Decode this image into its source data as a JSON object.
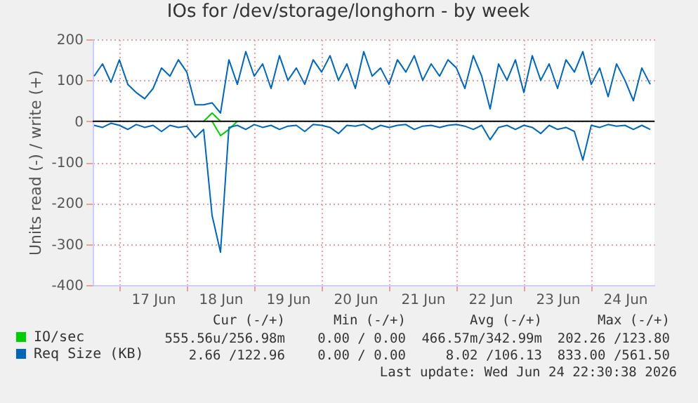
{
  "chart_data": {
    "type": "line",
    "title": "IOs for /dev/storage/longhorn - by week",
    "ylabel": "Units read (-) / write (+)",
    "x": [
      "2026-06-16T15:00",
      "2026-06-16T18:00",
      "2026-06-16T21:00",
      "2026-06-17T00:00",
      "2026-06-17T03:00",
      "2026-06-17T06:00",
      "2026-06-17T09:00",
      "2026-06-17T12:00",
      "2026-06-17T15:00",
      "2026-06-17T18:00",
      "2026-06-17T21:00",
      "2026-06-18T00:00",
      "2026-06-18T03:00",
      "2026-06-18T06:00",
      "2026-06-18T09:00",
      "2026-06-18T12:00",
      "2026-06-18T15:00",
      "2026-06-18T18:00",
      "2026-06-18T21:00",
      "2026-06-19T00:00",
      "2026-06-19T03:00",
      "2026-06-19T06:00",
      "2026-06-19T09:00",
      "2026-06-19T12:00",
      "2026-06-19T15:00",
      "2026-06-19T18:00",
      "2026-06-19T21:00",
      "2026-06-20T00:00",
      "2026-06-20T03:00",
      "2026-06-20T06:00",
      "2026-06-20T09:00",
      "2026-06-20T12:00",
      "2026-06-20T15:00",
      "2026-06-20T18:00",
      "2026-06-20T21:00",
      "2026-06-21T00:00",
      "2026-06-21T03:00",
      "2026-06-21T06:00",
      "2026-06-21T09:00",
      "2026-06-21T12:00",
      "2026-06-21T15:00",
      "2026-06-21T18:00",
      "2026-06-21T21:00",
      "2026-06-22T00:00",
      "2026-06-22T03:00",
      "2026-06-22T06:00",
      "2026-06-22T09:00",
      "2026-06-22T12:00",
      "2026-06-22T15:00",
      "2026-06-22T18:00",
      "2026-06-22T21:00",
      "2026-06-23T00:00",
      "2026-06-23T03:00",
      "2026-06-23T06:00",
      "2026-06-23T09:00",
      "2026-06-23T12:00",
      "2026-06-23T15:00",
      "2026-06-23T18:00",
      "2026-06-23T21:00",
      "2026-06-24T00:00",
      "2026-06-24T03:00",
      "2026-06-24T06:00",
      "2026-06-24T09:00",
      "2026-06-24T12:00",
      "2026-06-24T15:00",
      "2026-06-24T18:00",
      "2026-06-24T21:00"
    ],
    "series": [
      {
        "name": "IO/sec",
        "color": "#00cc00",
        "values": [
          null,
          null,
          null,
          null,
          null,
          null,
          null,
          null,
          null,
          null,
          null,
          null,
          null,
          0,
          20,
          0,
          null,
          null,
          null,
          null,
          null,
          null,
          null,
          null,
          null,
          null,
          null,
          null,
          null,
          null,
          null,
          null,
          null,
          null,
          null,
          null,
          null,
          null,
          null,
          null,
          null,
          null,
          null,
          null,
          null,
          null,
          null,
          null,
          null,
          null,
          null,
          null,
          null,
          null,
          null,
          null,
          null,
          null,
          null,
          null,
          null,
          null,
          null,
          null,
          null,
          null,
          null
        ]
      },
      {
        "color": "#00cc00",
        "values": [
          null,
          null,
          null,
          null,
          null,
          null,
          null,
          null,
          null,
          null,
          null,
          null,
          null,
          null,
          0,
          -35,
          -20,
          0,
          null,
          null,
          null,
          null,
          null,
          null,
          null,
          null,
          null,
          null,
          null,
          null,
          null,
          null,
          null,
          null,
          null,
          null,
          null,
          null,
          null,
          null,
          null,
          null,
          null,
          null,
          null,
          null,
          null,
          null,
          null,
          null,
          null,
          null,
          null,
          null,
          null,
          null,
          null,
          null,
          null,
          null,
          null,
          null,
          null,
          null,
          null,
          null,
          null
        ]
      },
      {
        "name": "Req Size (KB)",
        "color": "#0066b3",
        "values": [
          110,
          140,
          95,
          150,
          90,
          70,
          55,
          80,
          130,
          110,
          150,
          120,
          40,
          40,
          45,
          20,
          150,
          90,
          170,
          110,
          140,
          80,
          160,
          100,
          130,
          90,
          150,
          120,
          160,
          100,
          140,
          80,
          170,
          110,
          130,
          90,
          150,
          120,
          160,
          100,
          140,
          110,
          150,
          130,
          80,
          160,
          110,
          30,
          140,
          100,
          150,
          70,
          160,
          100,
          140,
          80,
          150,
          120,
          170,
          90,
          130,
          60,
          140,
          100,
          50,
          130,
          90
        ]
      },
      {
        "color": "#0066b3",
        "values": [
          -10,
          -15,
          -5,
          -10,
          -20,
          -8,
          -15,
          -10,
          -25,
          -10,
          -15,
          -12,
          -40,
          -20,
          -230,
          -320,
          -15,
          -10,
          -20,
          -8,
          -15,
          -10,
          -20,
          -12,
          -10,
          -25,
          -8,
          -10,
          -15,
          -30,
          -10,
          -12,
          -8,
          -20,
          -10,
          -15,
          -10,
          -8,
          -20,
          -12,
          -10,
          -15,
          -10,
          -8,
          -12,
          -20,
          -10,
          -45,
          -15,
          -10,
          -20,
          -10,
          -15,
          -30,
          -10,
          -20,
          -15,
          -25,
          -95,
          -10,
          -15,
          -8,
          -12,
          -10,
          -20,
          -10,
          -20
        ]
      }
    ],
    "xlim": [
      "2026-06-16T14:30",
      "2026-06-24T22:30"
    ],
    "xticks": [
      {
        "value": "2026-06-17T00:00",
        "label": null
      },
      {
        "value": "2026-06-17T12:00",
        "label": "17 Jun"
      },
      {
        "value": "2026-06-18T00:00",
        "label": null
      },
      {
        "value": "2026-06-18T12:00",
        "label": "18 Jun"
      },
      {
        "value": "2026-06-19T00:00",
        "label": null
      },
      {
        "value": "2026-06-19T12:00",
        "label": "19 Jun"
      },
      {
        "value": "2026-06-20T00:00",
        "label": null
      },
      {
        "value": "2026-06-20T12:00",
        "label": "20 Jun"
      },
      {
        "value": "2026-06-21T00:00",
        "label": null
      },
      {
        "value": "2026-06-21T12:00",
        "label": "21 Jun"
      },
      {
        "value": "2026-06-22T00:00",
        "label": null
      },
      {
        "value": "2026-06-22T12:00",
        "label": "22 Jun"
      },
      {
        "value": "2026-06-23T00:00",
        "label": null
      },
      {
        "value": "2026-06-23T12:00",
        "label": "23 Jun"
      },
      {
        "value": "2026-06-24T00:00",
        "label": null
      },
      {
        "value": "2026-06-24T12:00",
        "label": "24 Jun"
      }
    ],
    "ylim": [
      -400,
      200
    ],
    "yticks": [
      -400,
      -300,
      -200,
      -100,
      0,
      100,
      200
    ],
    "grid": true,
    "legend": "bottom left",
    "ref_lines": [
      {
        "axis": "y",
        "value": 0,
        "color": "#000000"
      }
    ],
    "annotations": [
      "Cur (-/+)",
      "Min (-/+)",
      "Avg (-/+)",
      "Max (-/+)",
      "555.56u/256.98m",
      "0.00 / 0.00",
      "466.57m/342.99m",
      "202.26 /123.80",
      "2.66 /122.96",
      "0.00 / 0.00",
      "8.02 /106.13",
      "833.00 /561.50",
      "Last update: Wed Jun 24 22:30:38 2026"
    ]
  }
}
